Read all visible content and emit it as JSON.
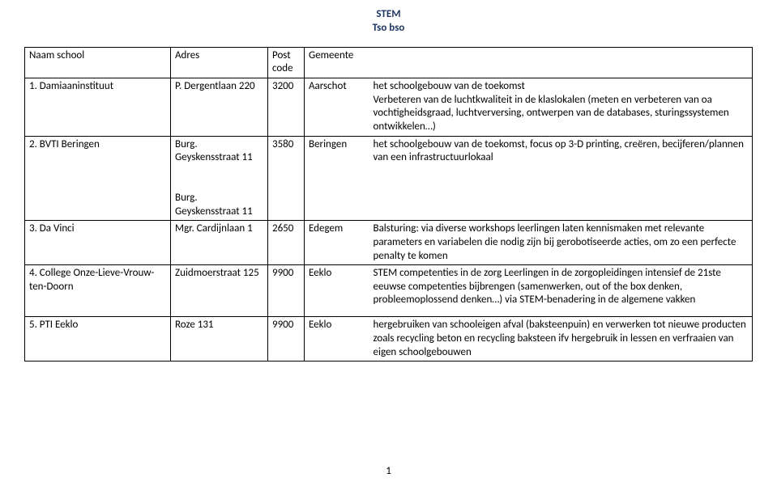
{
  "header": {
    "line1": "STEM",
    "line2": "Tso bso"
  },
  "page_number": "1",
  "columns": {
    "name": "Naam school",
    "address": "Adres",
    "post": "Post code",
    "municipality": "Gemeente",
    "desc": ""
  },
  "rows": [
    {
      "name": "1. Damiaaninstituut",
      "address": "P. Dergentlaan 220",
      "post": "3200",
      "municipality": "Aarschot",
      "desc": "het schoolgebouw van de toekomst\nVerbeteren van de luchtkwaliteit in de klaslokalen (meten en verbeteren van oa vochtigheidsgraad, luchtverversing, ontwerpen van de databases, sturingssystemen ontwikkelen…)"
    },
    {
      "name": "2. BVTI Beringen",
      "address": "Burg. Geyskensstraat 11\n\nBurg. Geyskensstraat 11",
      "post": "3580",
      "municipality": "Beringen",
      "desc": "het schoolgebouw van de toekomst, focus op 3-D printing, creëren, becijferen/plannen van een infrastructuurlokaal"
    },
    {
      "name": "3. Da Vinci",
      "address": "Mgr. Cardijnlaan 1",
      "post": "2650",
      "municipality": "Edegem",
      "desc": "Balsturing: via diverse workshops leerlingen laten kennismaken met relevante parameters en variabelen die nodig zijn bij gerobotiseerde acties, om zo een perfecte penalty te komen"
    },
    {
      "name": "4. College Onze-Lieve-Vrouw-ten-Doorn",
      "address": "Zuidmoerstraat 125",
      "post": "9900",
      "municipality": "Eeklo",
      "desc": "STEM competenties in de zorg  Leerlingen in de zorgopleidingen intensief de 21ste eeuwse competenties bijbrengen (samenwerken, out of the box denken, probleemoplossend denken…) via STEM-benadering in de algemene vakken"
    },
    {
      "name": "5. PTI Eeklo",
      "address": "Roze 131",
      "post": "9900",
      "municipality": "Eeklo",
      "desc": "hergebruiken van  schooleigen afval (baksteenpuin) en verwerken tot nieuwe producten zoals recycling beton en recycling baksteen ifv hergebruik in lessen en verfraaien van eigen schoolgebouwen"
    }
  ]
}
